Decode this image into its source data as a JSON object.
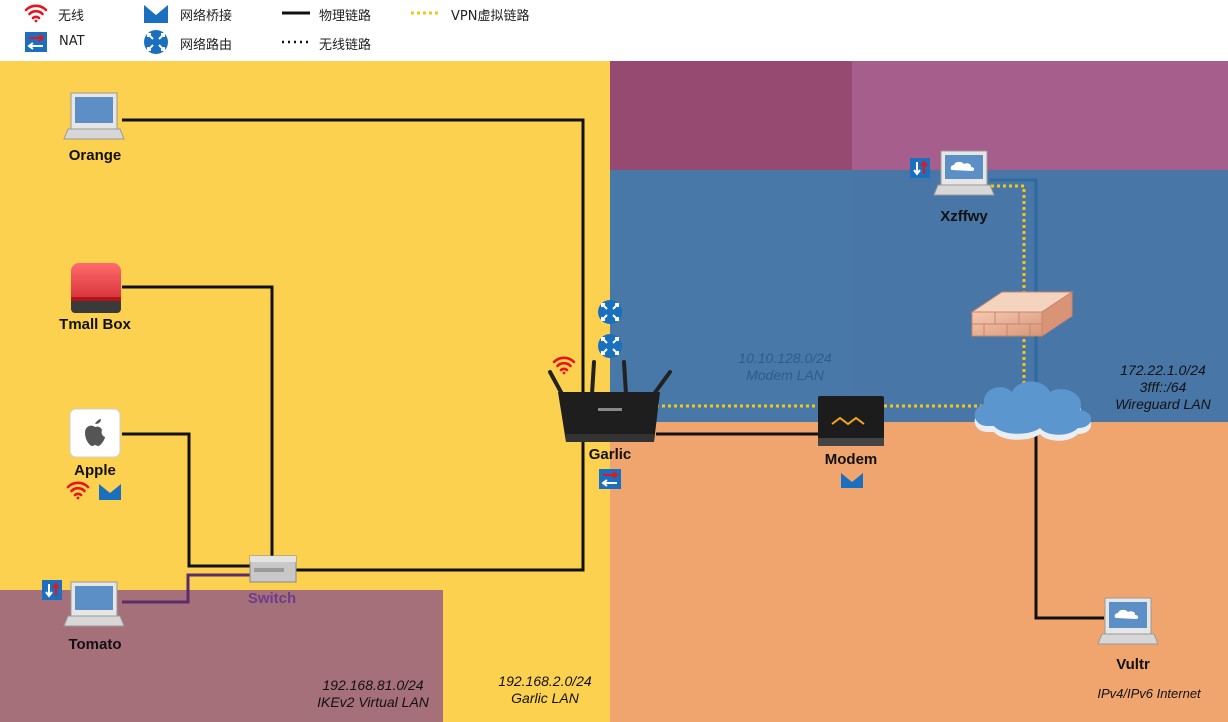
{
  "legend": {
    "wireless": "无线",
    "nat": "NAT",
    "bridge": "网络桥接",
    "routing": "网络路由",
    "physical_link": "物理链路",
    "wireless_link": "无线链路",
    "vpn_link": "VPN虚拟链路"
  },
  "nodes": {
    "orange": "Orange",
    "tmall_box": "Tmall Box",
    "apple": "Apple",
    "tomato": "Tomato",
    "switch": "Switch",
    "garlic": "Garlic",
    "modem": "Modem",
    "xzffwy": "Xzffwy",
    "vultr": "Vultr"
  },
  "networks": {
    "ikev2": {
      "subnet": "192.168.81.0/24",
      "name": "IKEv2 Virtual LAN"
    },
    "garlic_lan": {
      "subnet": "192.168.2.0/24",
      "name": "Garlic LAN"
    },
    "modem_lan": {
      "subnet": "10.10.128.0/24",
      "name": "Modem LAN"
    },
    "wireguard": {
      "subnet": "172.22.1.0/24",
      "subnet6": "3fff::/64",
      "name": "Wireguard LAN"
    },
    "internet": {
      "name": "IPv4/IPv6 Internet"
    }
  },
  "colors": {
    "garlic_lan": "#fcd150",
    "ikev2": "#a6707a",
    "internet": "#f0a56e",
    "modem_lan": "#4878a8",
    "purple_dark": "#964a72",
    "purple_light": "#a65e8c",
    "vpn_link": "#f5c518",
    "wifi": "#e8141c",
    "icon_blue": "#1a6fbf"
  }
}
